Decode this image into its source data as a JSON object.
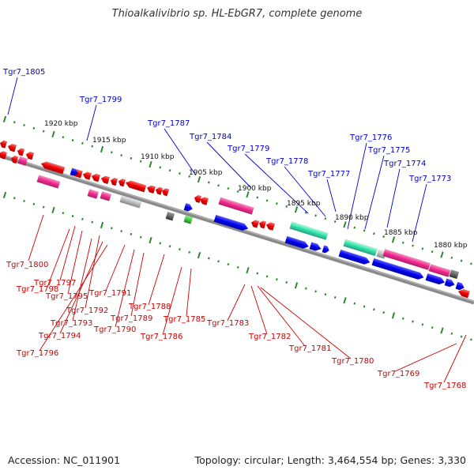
{
  "title": "Thioalkalivibrio sp. HL-EbGR7, complete genome",
  "footer": {
    "accession": "Accession: NC_011901",
    "summary": "Topology: circular; Length: 3,464,554 bp; Genes: 3,330"
  },
  "colors": {
    "forward_label": "#0000cc",
    "reverse_label": "#cc0000",
    "backbone": "#808080",
    "ticks": "#2a8a2a",
    "forward_gene": "#0000ee",
    "reverse_gene": "#ee0000",
    "rrna": "#ee2b8c",
    "trna": "#33ddaa",
    "other": "#bbbbbb"
  },
  "scale_labels": [
    "1920 kbp",
    "1915 kbp",
    "1910 kbp",
    "1905 kbp",
    "1900 kbp",
    "1895 kbp",
    "1890 kbp",
    "1885 kbp",
    "1880 kbp"
  ],
  "forward_labels": [
    "Tgr7_1805",
    "Tgr7_1799",
    "Tgr7_1787",
    "Tgr7_1784",
    "Tgr7_1779",
    "Tgr7_1778",
    "Tgr7_1777",
    "Tgr7_1776",
    "Tgr7_1775",
    "Tgr7_1774",
    "Tgr7_1773"
  ],
  "reverse_labels": [
    "Tgr7_1800",
    "Tgr7_1797",
    "Tgr7_1798",
    "Tgr7_1795",
    "Tgr7_1792",
    "Tgr7_1793",
    "Tgr7_1794",
    "Tgr7_1796",
    "Tgr7_1791",
    "Tgr7_1790",
    "Tgr7_1789",
    "Tgr7_1788",
    "Tgr7_1786",
    "Tgr7_1785",
    "Tgr7_1783",
    "Tgr7_1782",
    "Tgr7_1781",
    "Tgr7_1780",
    "Tgr7_1769",
    "Tgr7_1768"
  ]
}
